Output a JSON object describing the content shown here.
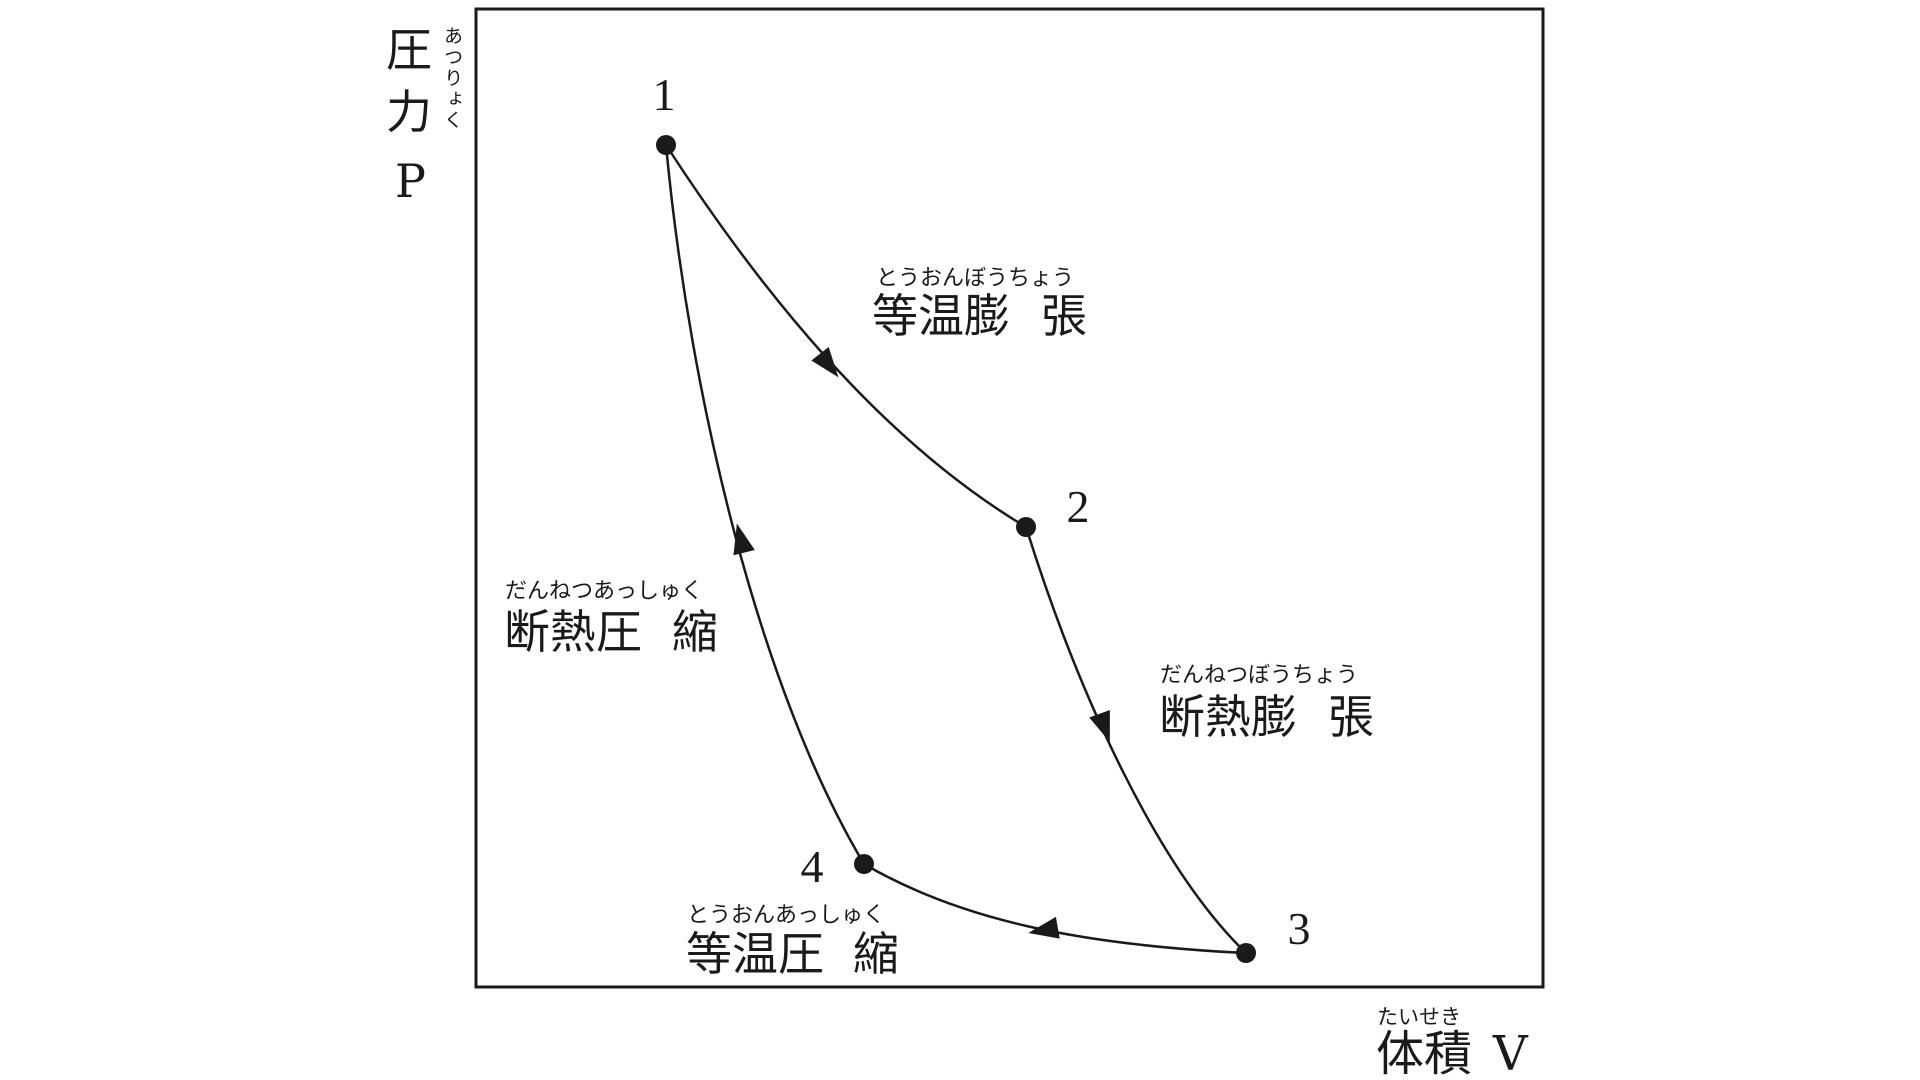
{
  "axes": {
    "y_label": "圧力",
    "y_ruby": "あつりょく",
    "y_symbol": "P",
    "x_label": "体積",
    "x_ruby": "たいせき",
    "x_symbol": "V"
  },
  "points": [
    {
      "id": "1",
      "label": "1"
    },
    {
      "id": "2",
      "label": "2"
    },
    {
      "id": "3",
      "label": "3"
    },
    {
      "id": "4",
      "label": "4"
    }
  ],
  "processes": [
    {
      "id": "isothermal-expansion",
      "from": "1",
      "to": "2",
      "kanji_a": "等温膨",
      "kanji_b": "張",
      "ruby": "とうおんぼうちょう"
    },
    {
      "id": "adiabatic-expansion",
      "from": "2",
      "to": "3",
      "kanji_a": "断熱膨",
      "kanji_b": "張",
      "ruby": "だんねつぼうちょう"
    },
    {
      "id": "isothermal-compression",
      "from": "3",
      "to": "4",
      "kanji_a": "等温圧",
      "kanji_b": "縮",
      "ruby": "とうおんあっしゅく"
    },
    {
      "id": "adiabatic-compression",
      "from": "4",
      "to": "1",
      "kanji_a": "断熱圧",
      "kanji_b": "縮",
      "ruby": "だんねつあっしゅく"
    }
  ],
  "colors": {
    "line": "#1a1a1a",
    "frame": "#1a1a1a",
    "background": "#ffffff"
  }
}
